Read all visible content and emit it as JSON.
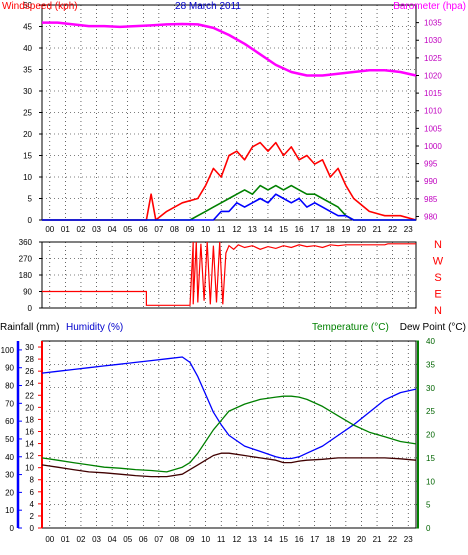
{
  "chart_data": [
    {
      "type": "line",
      "title": "28 March 2011",
      "ylabel_left": "Windspeed (kph)",
      "ylabel_right": "Barometer (hpa)",
      "yticks_left": [
        0,
        5,
        10,
        15,
        20,
        25,
        30,
        35,
        40,
        45,
        50
      ],
      "ylim_left": [
        0,
        50
      ],
      "yticks_right": [
        980,
        985,
        990,
        995,
        1000,
        1005,
        1010,
        1015,
        1020,
        1025,
        1030,
        1035
      ],
      "ylim_right": [
        979,
        1040
      ],
      "x_ticks": [
        "00",
        "01",
        "02",
        "03",
        "04",
        "05",
        "06",
        "07",
        "08",
        "09",
        "10",
        "11",
        "12",
        "13",
        "14",
        "15",
        "16",
        "17",
        "18",
        "19",
        "20",
        "21",
        "22",
        "23"
      ],
      "xlim": [
        0,
        24
      ],
      "grid": true,
      "series": [
        {
          "color": "#ff00ff",
          "axis": "right",
          "x": [
            0,
            1,
            2,
            3,
            4,
            5,
            6,
            7,
            8,
            9,
            10,
            11,
            12,
            13,
            14,
            15,
            16,
            17,
            18,
            19,
            20,
            21,
            22,
            23,
            24
          ],
          "values": [
            1035,
            1035,
            1034.5,
            1034,
            1034,
            1033.8,
            1034,
            1034.2,
            1034.5,
            1034.6,
            1034.5,
            1033.5,
            1031.5,
            1029,
            1026,
            1023,
            1021,
            1020,
            1020,
            1020.5,
            1021,
            1021.5,
            1021.5,
            1021,
            1020
          ]
        },
        {
          "color": "#ff0000",
          "axis": "left",
          "x": [
            0,
            6.7,
            7,
            7.3,
            8,
            9,
            10,
            10.5,
            11,
            11.5,
            12,
            12.5,
            13,
            13.5,
            14,
            14.5,
            15,
            15.5,
            16,
            16.5,
            17,
            17.5,
            18,
            18.5,
            19,
            19.5,
            20,
            21,
            22,
            23,
            24
          ],
          "values": [
            0,
            0,
            6,
            0,
            2,
            4,
            5,
            8,
            12,
            10,
            15,
            16,
            14,
            17,
            18,
            16,
            18,
            15,
            17,
            14,
            15,
            13,
            14,
            10,
            12,
            8,
            5,
            2,
            1,
            1,
            0
          ]
        },
        {
          "color": "#008000",
          "axis": "left",
          "x": [
            0,
            9.5,
            10,
            10.5,
            11,
            11.5,
            12,
            12.5,
            13,
            13.5,
            14,
            14.5,
            15,
            15.5,
            16,
            16.5,
            17,
            17.5,
            18,
            18.5,
            19,
            19.5,
            20,
            24
          ],
          "values": [
            0,
            0,
            1,
            2,
            3,
            4,
            5,
            6,
            7,
            6,
            8,
            7,
            8,
            7,
            8,
            7,
            6,
            6,
            5,
            4,
            3,
            1,
            0,
            0
          ]
        },
        {
          "color": "#0000ff",
          "axis": "left",
          "x": [
            0,
            11,
            11.5,
            12,
            12.5,
            13,
            13.5,
            14,
            14.5,
            15,
            15.5,
            16,
            16.5,
            17,
            17.5,
            18,
            18.5,
            19,
            19.5,
            20,
            24
          ],
          "values": [
            0,
            0,
            2,
            2,
            4,
            3,
            4,
            5,
            4,
            6,
            5,
            4,
            5,
            3,
            4,
            3,
            2,
            1,
            1,
            0,
            0
          ]
        }
      ]
    },
    {
      "type": "line",
      "ylabel_right": [
        "N",
        "W",
        "S",
        "E",
        "N"
      ],
      "yticks": [
        0,
        90,
        180,
        270,
        360
      ],
      "ylim": [
        0,
        360
      ],
      "xlim": [
        0,
        24
      ],
      "grid": true,
      "series": [
        {
          "color": "#ff0000",
          "x": [
            0,
            6.7,
            6.7,
            9.5,
            9.7,
            9.7,
            9.9,
            10,
            10.2,
            10.4,
            10.6,
            10.8,
            11,
            11.2,
            11.4,
            11.6,
            11.8,
            12,
            12.3,
            12.6,
            13,
            13.5,
            14,
            14.5,
            15,
            15.5,
            16,
            16.5,
            17,
            17.5,
            18,
            18.5,
            19,
            19.5,
            20,
            21,
            22,
            22.2,
            23,
            24
          ],
          "values": [
            90,
            90,
            15,
            15,
            360,
            20,
            360,
            30,
            350,
            40,
            360,
            20,
            340,
            30,
            360,
            20,
            300,
            340,
            320,
            345,
            330,
            340,
            320,
            335,
            325,
            340,
            330,
            345,
            335,
            340,
            330,
            345,
            340,
            345,
            345,
            345,
            345,
            350,
            350,
            350
          ]
        }
      ]
    },
    {
      "type": "line",
      "ylabel_left": "Rainfall (mm)",
      "ylabel_left2": "Humidity (%)",
      "ylabel_right": "Temperature (°C)",
      "ylabel_right2": "Dew Point (°C)",
      "rain_ticks": [
        0,
        2,
        4,
        6,
        8,
        10,
        12,
        14,
        16,
        18,
        20,
        22,
        24,
        26,
        28,
        30
      ],
      "humidity_ticks": [
        0,
        10,
        20,
        30,
        40,
        50,
        60,
        70,
        80,
        90,
        100
      ],
      "temp_ticks": [
        0,
        5,
        10,
        15,
        20,
        25,
        30,
        35,
        40
      ],
      "ylim_humidity": [
        0,
        105
      ],
      "ylim_temp": [
        0,
        40
      ],
      "x_ticks": [
        "00",
        "01",
        "02",
        "03",
        "04",
        "05",
        "06",
        "07",
        "08",
        "09",
        "10",
        "11",
        "12",
        "13",
        "14",
        "15",
        "16",
        "17",
        "18",
        "19",
        "20",
        "21",
        "22",
        "23"
      ],
      "xlim": [
        0,
        24
      ],
      "grid": true,
      "series": [
        {
          "color": "#0000ff",
          "axis": "humidity",
          "x": [
            0,
            1,
            2,
            3,
            4,
            5,
            6,
            7,
            8,
            9,
            9.5,
            10,
            10.5,
            11,
            11.5,
            12,
            13,
            14,
            15,
            15.5,
            16,
            16.5,
            17,
            18,
            19,
            20,
            21,
            22,
            23,
            24
          ],
          "values": [
            87,
            88,
            89,
            90,
            91,
            92,
            93,
            94,
            95,
            96,
            93,
            85,
            75,
            65,
            58,
            52,
            46,
            43,
            40,
            39,
            39,
            40,
            42,
            46,
            52,
            58,
            65,
            72,
            76,
            78
          ]
        },
        {
          "color": "#008000",
          "axis": "temp",
          "x": [
            0,
            1,
            2,
            3,
            4,
            5,
            6,
            7,
            8,
            9,
            9.5,
            10,
            10.5,
            11,
            11.5,
            12,
            13,
            14,
            15,
            15.5,
            16,
            16.5,
            17,
            18,
            19,
            20,
            21,
            22,
            23,
            24
          ],
          "values": [
            15,
            14.5,
            14,
            13.5,
            13,
            12.8,
            12.5,
            12.3,
            12,
            13,
            14,
            16,
            18.5,
            21,
            23,
            25,
            26.5,
            27.5,
            28,
            28.2,
            28.2,
            28,
            27.5,
            26,
            24,
            22,
            20.5,
            19.5,
            18.5,
            18
          ]
        },
        {
          "color": "#400000",
          "axis": "temp",
          "x": [
            0,
            1,
            2,
            3,
            4,
            5,
            6,
            7,
            8,
            9,
            9.5,
            10,
            10.5,
            11,
            11.5,
            12,
            13,
            14,
            15,
            15.5,
            16,
            16.5,
            17,
            18,
            19,
            20,
            21,
            22,
            23,
            24
          ],
          "values": [
            13.5,
            13,
            12.5,
            12,
            11.8,
            11.5,
            11.2,
            11,
            11,
            11.5,
            12.5,
            13.5,
            14.5,
            15.5,
            16,
            16,
            15.5,
            15,
            14.5,
            14,
            14,
            14.3,
            14.5,
            14.7,
            15,
            15,
            15,
            15,
            14.8,
            14.5
          ]
        }
      ]
    }
  ]
}
